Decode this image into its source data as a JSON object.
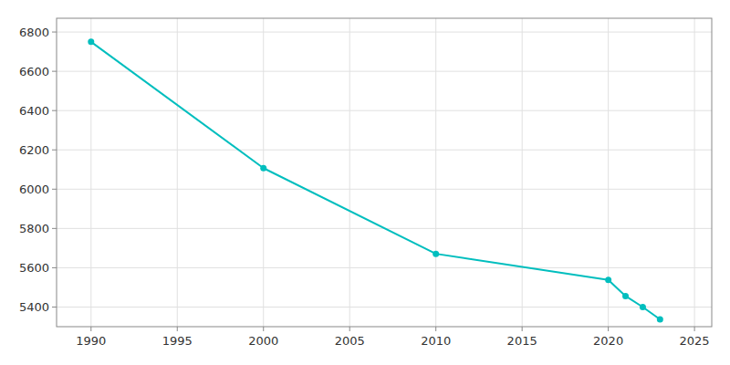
{
  "chart_data": {
    "type": "line",
    "x": [
      1990,
      2000,
      2010,
      2020,
      2021,
      2022,
      2023
    ],
    "values": [
      6750,
      6107,
      5671,
      5538,
      5456,
      5400,
      5337
    ],
    "color": "#00BEBE",
    "marker": "circle",
    "xlim": [
      1988,
      2026
    ],
    "ylim": [
      5300,
      6870
    ],
    "xticks": [
      1990,
      1995,
      2000,
      2005,
      2010,
      2015,
      2020,
      2025
    ],
    "yticks": [
      5400,
      5600,
      5800,
      6000,
      6200,
      6400,
      6600,
      6800
    ],
    "grid": true
  }
}
